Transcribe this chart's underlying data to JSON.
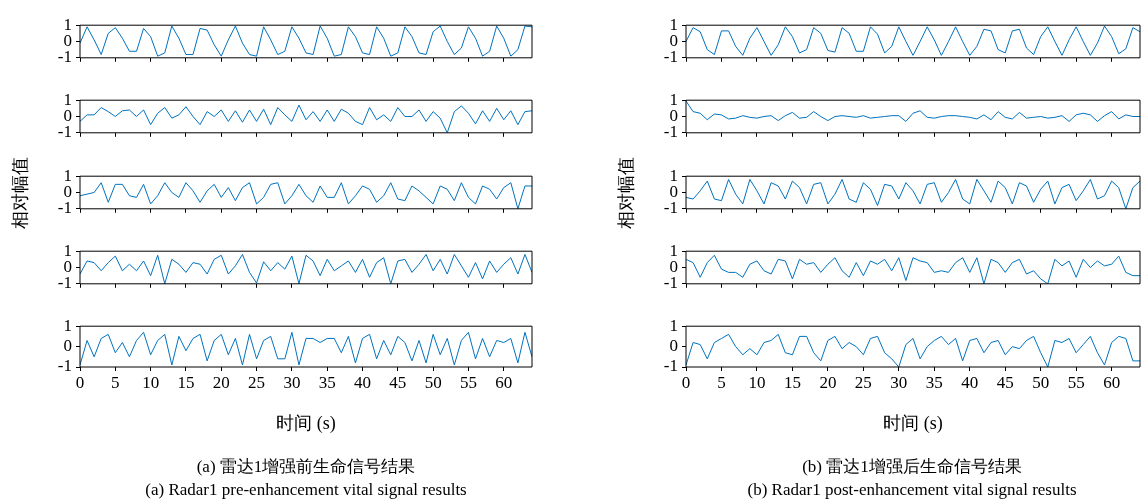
{
  "chart_data": [
    {
      "type": "line",
      "color": "#0072bd",
      "xlim": [
        0,
        64
      ],
      "xticks": [
        0,
        5,
        10,
        15,
        20,
        25,
        30,
        35,
        40,
        45,
        50,
        55,
        60
      ],
      "ylim": [
        -1,
        1
      ],
      "yticks": [
        -1,
        0,
        1
      ],
      "tick_labels": "y",
      "x": [
        0,
        1,
        2,
        3,
        4,
        5,
        6,
        7,
        8,
        9,
        10,
        11,
        12,
        13,
        14,
        15,
        16,
        17,
        18,
        19,
        20,
        21,
        22,
        23,
        24,
        25,
        26,
        27,
        28,
        29,
        30,
        31,
        32,
        33,
        34,
        35,
        36,
        37,
        38,
        39,
        40,
        41,
        42,
        43,
        44,
        45,
        46,
        47,
        48,
        49,
        50,
        51,
        52,
        53,
        54,
        55,
        56,
        57,
        58,
        59,
        60,
        61,
        62,
        63,
        64
      ],
      "values": [
        -0.1,
        0.9,
        0.1,
        -0.8,
        0.5,
        0.85,
        0.2,
        -0.6,
        -0.6,
        0.8,
        0.3,
        -0.9,
        -0.7,
        0.95,
        0.2,
        -0.8,
        -0.8,
        0.8,
        0.7,
        -0.2,
        -0.9,
        0.1,
        0.95,
        -0.1,
        -0.8,
        -0.9,
        0.9,
        0.1,
        -0.8,
        -0.6,
        0.9,
        0.2,
        -0.7,
        -0.8,
        0.95,
        0.2,
        -0.9,
        -0.8,
        0.9,
        0.3,
        -0.7,
        -0.8,
        0.9,
        0.2,
        -0.9,
        -0.7,
        0.9,
        0.3,
        -0.7,
        -0.8,
        0.6,
        0.95,
        0.0,
        -0.8,
        -0.4,
        0.9,
        0.2,
        -0.9,
        -0.6,
        0.95,
        0.2,
        -0.9,
        -0.5,
        0.95,
        0.9
      ]
    },
    {
      "type": "line",
      "color": "#0072bd",
      "xlim": [
        0,
        64
      ],
      "xticks": [
        0,
        5,
        10,
        15,
        20,
        25,
        30,
        35,
        40,
        45,
        50,
        55,
        60
      ],
      "ylim": [
        -1,
        1
      ],
      "yticks": [
        -1,
        0,
        1
      ],
      "tick_labels": "y",
      "x": [
        0,
        1,
        2,
        3,
        4,
        5,
        6,
        7,
        8,
        9,
        10,
        11,
        12,
        13,
        14,
        15,
        16,
        17,
        18,
        19,
        20,
        21,
        22,
        23,
        24,
        25,
        26,
        27,
        28,
        29,
        30,
        31,
        32,
        33,
        34,
        35,
        36,
        37,
        38,
        39,
        40,
        41,
        42,
        43,
        44,
        45,
        46,
        47,
        48,
        49,
        50,
        51,
        52,
        53,
        54,
        55,
        56,
        57,
        58,
        59,
        60,
        61,
        62,
        63,
        64
      ],
      "values": [
        -0.3,
        0.1,
        0.1,
        0.55,
        0.3,
        0.0,
        0.35,
        0.4,
        0.0,
        0.4,
        -0.5,
        0.2,
        0.55,
        -0.1,
        0.1,
        0.6,
        0.0,
        -0.5,
        0.3,
        0.0,
        0.4,
        -0.3,
        0.35,
        -0.35,
        0.4,
        -0.3,
        0.45,
        -0.5,
        0.55,
        0.1,
        -0.3,
        0.7,
        -0.2,
        0.3,
        -0.3,
        0.4,
        -0.3,
        0.45,
        0.2,
        -0.3,
        -0.5,
        0.55,
        -0.2,
        0.1,
        -0.3,
        0.55,
        0.0,
        0.0,
        0.4,
        -0.3,
        0.3,
        -0.1,
        -1.0,
        0.3,
        0.65,
        0.2,
        -0.45,
        0.35,
        -0.3,
        0.5,
        -0.2,
        0.35,
        -0.5,
        0.3,
        0.35
      ]
    },
    {
      "type": "line",
      "color": "#0072bd",
      "xlim": [
        0,
        64
      ],
      "xticks": [
        0,
        5,
        10,
        15,
        20,
        25,
        30,
        35,
        40,
        45,
        50,
        55,
        60
      ],
      "ylim": [
        -1,
        1
      ],
      "yticks": [
        -1,
        0,
        1
      ],
      "tick_labels": "y",
      "ylabel": "相对幅值",
      "x": [
        0,
        1,
        2,
        3,
        4,
        5,
        6,
        7,
        8,
        9,
        10,
        11,
        12,
        13,
        14,
        15,
        16,
        17,
        18,
        19,
        20,
        21,
        22,
        23,
        24,
        25,
        26,
        27,
        28,
        29,
        30,
        31,
        32,
        33,
        34,
        35,
        36,
        37,
        38,
        39,
        40,
        41,
        42,
        43,
        44,
        45,
        46,
        47,
        48,
        49,
        50,
        51,
        52,
        53,
        54,
        55,
        56,
        57,
        58,
        59,
        60,
        61,
        62,
        63,
        64
      ],
      "values": [
        -0.2,
        -0.1,
        0.0,
        0.6,
        -0.6,
        0.5,
        0.5,
        -0.2,
        -0.3,
        0.5,
        -0.7,
        -0.2,
        0.6,
        0.0,
        -0.3,
        0.6,
        0.1,
        -0.6,
        0.1,
        0.5,
        -0.3,
        0.3,
        -0.5,
        0.3,
        0.6,
        -0.7,
        -0.3,
        0.5,
        0.6,
        -0.7,
        -0.2,
        0.5,
        -0.2,
        -0.6,
        0.4,
        -0.3,
        -0.3,
        0.6,
        -0.7,
        -0.2,
        0.4,
        0.2,
        -0.6,
        -0.2,
        0.6,
        -0.4,
        -0.5,
        0.4,
        0.1,
        -0.3,
        -0.7,
        0.4,
        0.2,
        -0.5,
        0.6,
        -0.3,
        -0.7,
        0.4,
        0.2,
        -0.4,
        0.3,
        0.6,
        -1.0,
        0.4,
        0.4
      ]
    },
    {
      "type": "line",
      "color": "#0072bd",
      "xlim": [
        0,
        64
      ],
      "xticks": [
        0,
        5,
        10,
        15,
        20,
        25,
        30,
        35,
        40,
        45,
        50,
        55,
        60
      ],
      "ylim": [
        -1,
        1
      ],
      "yticks": [
        -1,
        0,
        1
      ],
      "tick_labels": "y",
      "x": [
        0,
        1,
        2,
        3,
        4,
        5,
        6,
        7,
        8,
        9,
        10,
        11,
        12,
        13,
        14,
        15,
        16,
        17,
        18,
        19,
        20,
        21,
        22,
        23,
        24,
        25,
        26,
        27,
        28,
        29,
        30,
        31,
        32,
        33,
        34,
        35,
        36,
        37,
        38,
        39,
        40,
        41,
        42,
        43,
        44,
        45,
        46,
        47,
        48,
        49,
        50,
        51,
        52,
        53,
        54,
        55,
        56,
        57,
        58,
        59,
        60,
        61,
        62,
        63,
        64
      ],
      "values": [
        -0.4,
        0.4,
        0.3,
        -0.2,
        0.3,
        0.7,
        -0.2,
        0.2,
        -0.2,
        0.4,
        -0.5,
        0.75,
        -1.0,
        0.5,
        0.2,
        -0.3,
        0.3,
        0.2,
        -0.4,
        0.5,
        0.75,
        -0.4,
        0.1,
        0.8,
        -0.3,
        -0.95,
        0.35,
        -0.2,
        0.3,
        -0.1,
        0.7,
        -1.0,
        0.75,
        0.4,
        -0.5,
        0.5,
        -0.2,
        0.1,
        0.4,
        -0.3,
        0.5,
        -0.6,
        0.3,
        0.6,
        -1.0,
        0.4,
        0.5,
        -0.3,
        0.2,
        0.8,
        -0.2,
        0.5,
        -0.4,
        0.8,
        0.1,
        -0.6,
        0.3,
        -0.7,
        0.4,
        -0.3,
        0.2,
        0.6,
        -0.4,
        0.8,
        -0.3
      ]
    },
    {
      "type": "line",
      "color": "#0072bd",
      "xlim": [
        0,
        64
      ],
      "xticks": [
        0,
        5,
        10,
        15,
        20,
        25,
        30,
        35,
        40,
        45,
        50,
        55,
        60
      ],
      "ylim": [
        -1,
        1
      ],
      "yticks": [
        -1,
        0,
        1
      ],
      "xlabel": "时间 (s)",
      "annotations": [
        "(a) 雷达1增强前生命信号结果",
        "(a) Radar1 pre-enhancement vital signal results"
      ],
      "x": [
        0,
        1,
        2,
        3,
        4,
        5,
        6,
        7,
        8,
        9,
        10,
        11,
        12,
        13,
        14,
        15,
        16,
        17,
        18,
        19,
        20,
        21,
        22,
        23,
        24,
        25,
        26,
        27,
        28,
        29,
        30,
        31,
        32,
        33,
        34,
        35,
        36,
        37,
        38,
        39,
        40,
        41,
        42,
        43,
        44,
        45,
        46,
        47,
        48,
        49,
        50,
        51,
        52,
        53,
        54,
        55,
        56,
        57,
        58,
        59,
        60,
        61,
        62,
        63,
        64
      ],
      "values": [
        -0.9,
        0.3,
        -0.5,
        0.4,
        0.6,
        -0.3,
        0.2,
        -0.5,
        0.3,
        0.7,
        -0.4,
        0.3,
        0.6,
        -0.9,
        0.5,
        -0.2,
        0.4,
        0.6,
        -0.7,
        0.3,
        0.6,
        -0.4,
        0.4,
        -0.9,
        0.6,
        -0.6,
        0.3,
        0.5,
        -0.6,
        -0.6,
        0.7,
        -0.9,
        0.4,
        0.4,
        0.2,
        0.4,
        0.4,
        -0.3,
        0.5,
        -0.8,
        0.4,
        0.6,
        -0.6,
        0.3,
        -0.4,
        0.5,
        0.2,
        -0.7,
        0.3,
        -0.8,
        0.6,
        -0.4,
        0.4,
        -0.9,
        0.3,
        0.7,
        -0.6,
        0.4,
        -0.5,
        0.3,
        0.2,
        0.4,
        -0.8,
        0.7,
        -0.5
      ]
    },
    {
      "type": "line",
      "color": "#0072bd",
      "xlim": [
        0,
        64
      ],
      "xticks": [
        0,
        5,
        10,
        15,
        20,
        25,
        30,
        35,
        40,
        45,
        50,
        55,
        60
      ],
      "ylim": [
        -1,
        1
      ],
      "yticks": [
        -1,
        0,
        1
      ],
      "tick_labels": "y",
      "x": [
        0,
        1,
        2,
        3,
        4,
        5,
        6,
        7,
        8,
        9,
        10,
        11,
        12,
        13,
        14,
        15,
        16,
        17,
        18,
        19,
        20,
        21,
        22,
        23,
        24,
        25,
        26,
        27,
        28,
        29,
        30,
        31,
        32,
        33,
        34,
        35,
        36,
        37,
        38,
        39,
        40,
        41,
        42,
        43,
        44,
        45,
        46,
        47,
        48,
        49,
        50,
        51,
        52,
        53,
        54,
        55,
        56,
        57,
        58,
        59,
        60,
        61,
        62,
        63,
        64
      ],
      "values": [
        0.0,
        0.85,
        0.6,
        -0.5,
        -0.8,
        0.65,
        0.65,
        -0.3,
        -0.85,
        0.2,
        0.85,
        0.0,
        -0.85,
        -0.2,
        0.9,
        0.3,
        -0.7,
        -0.5,
        0.85,
        0.5,
        -0.55,
        -0.65,
        0.85,
        0.5,
        -0.6,
        -0.6,
        0.9,
        0.45,
        -0.7,
        -0.3,
        0.9,
        0.0,
        -0.85,
        0.0,
        0.9,
        0.1,
        -0.85,
        0.0,
        0.9,
        0.0,
        -0.85,
        -0.3,
        0.75,
        0.65,
        -0.5,
        -0.7,
        0.65,
        0.75,
        -0.4,
        -0.8,
        0.3,
        0.9,
        0.0,
        -0.85,
        0.1,
        0.9,
        0.0,
        -0.85,
        -0.1,
        0.95,
        0.3,
        -0.75,
        -0.45,
        0.85,
        0.6
      ]
    },
    {
      "type": "line",
      "color": "#0072bd",
      "xlim": [
        0,
        64
      ],
      "xticks": [
        0,
        5,
        10,
        15,
        20,
        25,
        30,
        35,
        40,
        45,
        50,
        55,
        60
      ],
      "ylim": [
        -1,
        1
      ],
      "yticks": [
        -1,
        0,
        1
      ],
      "tick_labels": "y",
      "x": [
        0,
        1,
        2,
        3,
        4,
        5,
        6,
        7,
        8,
        9,
        10,
        11,
        12,
        13,
        14,
        15,
        16,
        17,
        18,
        19,
        20,
        21,
        22,
        23,
        24,
        25,
        26,
        27,
        28,
        29,
        30,
        31,
        32,
        33,
        34,
        35,
        36,
        37,
        38,
        39,
        40,
        41,
        42,
        43,
        44,
        45,
        46,
        47,
        48,
        49,
        50,
        51,
        52,
        53,
        54,
        55,
        56,
        57,
        58,
        59,
        60,
        61,
        62,
        63,
        64
      ],
      "values": [
        0.95,
        0.3,
        0.2,
        -0.2,
        0.15,
        0.1,
        -0.15,
        -0.1,
        0.05,
        -0.05,
        -0.1,
        0.0,
        0.05,
        -0.25,
        0.05,
        0.25,
        -0.1,
        -0.05,
        0.3,
        0.0,
        -0.25,
        0.0,
        0.05,
        0.0,
        -0.05,
        0.05,
        -0.1,
        -0.05,
        0.0,
        0.05,
        0.05,
        -0.3,
        0.2,
        0.35,
        -0.05,
        -0.1,
        0.0,
        0.05,
        0.05,
        0.0,
        -0.05,
        -0.15,
        0.1,
        -0.2,
        0.3,
        -0.05,
        -0.15,
        0.25,
        -0.1,
        -0.05,
        0.0,
        -0.1,
        -0.05,
        0.05,
        -0.3,
        0.1,
        0.2,
        0.1,
        -0.3,
        0.05,
        0.3,
        -0.15,
        0.1,
        0.0,
        0.0
      ]
    },
    {
      "type": "line",
      "color": "#0072bd",
      "xlim": [
        0,
        64
      ],
      "xticks": [
        0,
        5,
        10,
        15,
        20,
        25,
        30,
        35,
        40,
        45,
        50,
        55,
        60
      ],
      "ylim": [
        -1,
        1
      ],
      "yticks": [
        -1,
        0,
        1
      ],
      "tick_labels": "y",
      "ylabel": "相对幅值",
      "x": [
        0,
        1,
        2,
        3,
        4,
        5,
        6,
        7,
        8,
        9,
        10,
        11,
        12,
        13,
        14,
        15,
        16,
        17,
        18,
        19,
        20,
        21,
        22,
        23,
        24,
        25,
        26,
        27,
        28,
        29,
        30,
        31,
        32,
        33,
        34,
        35,
        36,
        37,
        38,
        39,
        40,
        41,
        42,
        43,
        44,
        45,
        46,
        47,
        48,
        49,
        50,
        51,
        52,
        53,
        54,
        55,
        56,
        57,
        58,
        59,
        60,
        61,
        62,
        63,
        64
      ],
      "values": [
        -0.3,
        -0.4,
        0.1,
        0.7,
        -0.4,
        -0.5,
        0.8,
        -0.1,
        -0.7,
        0.8,
        0.1,
        -0.7,
        0.6,
        0.4,
        -0.4,
        0.7,
        0.3,
        -0.7,
        0.5,
        0.6,
        -0.7,
        -0.1,
        0.8,
        -0.4,
        -0.6,
        0.6,
        0.2,
        -0.8,
        0.5,
        0.4,
        -0.4,
        0.6,
        0.1,
        -0.7,
        0.5,
        0.6,
        -0.6,
        0.0,
        0.8,
        -0.4,
        -0.7,
        0.8,
        0.1,
        -0.6,
        0.7,
        0.3,
        -0.7,
        0.6,
        0.4,
        -0.6,
        0.2,
        0.7,
        -0.7,
        0.3,
        0.5,
        -0.5,
        0.1,
        0.8,
        -0.4,
        -0.2,
        0.7,
        0.3,
        -1.0,
        0.3,
        0.7
      ]
    },
    {
      "type": "line",
      "color": "#0072bd",
      "xlim": [
        0,
        64
      ],
      "xticks": [
        0,
        5,
        10,
        15,
        20,
        25,
        30,
        35,
        40,
        45,
        50,
        55,
        60
      ],
      "ylim": [
        -1,
        1
      ],
      "yticks": [
        -1,
        0,
        1
      ],
      "tick_labels": "y",
      "x": [
        0,
        1,
        2,
        3,
        4,
        5,
        6,
        7,
        8,
        9,
        10,
        11,
        12,
        13,
        14,
        15,
        16,
        17,
        18,
        19,
        20,
        21,
        22,
        23,
        24,
        25,
        26,
        27,
        28,
        29,
        30,
        31,
        32,
        33,
        34,
        35,
        36,
        37,
        38,
        39,
        40,
        41,
        42,
        43,
        44,
        45,
        46,
        47,
        48,
        49,
        50,
        51,
        52,
        53,
        54,
        55,
        56,
        57,
        58,
        59,
        60,
        61,
        62,
        63,
        64
      ],
      "values": [
        0.5,
        0.3,
        -0.6,
        0.3,
        0.75,
        -0.1,
        -0.3,
        -0.3,
        -0.6,
        0.2,
        0.4,
        -0.2,
        -0.4,
        0.5,
        0.4,
        -0.7,
        0.5,
        0.2,
        0.3,
        -0.3,
        0.2,
        0.6,
        -0.2,
        -0.6,
        0.3,
        -0.5,
        0.4,
        0.2,
        0.5,
        -0.2,
        0.6,
        -0.8,
        0.6,
        0.4,
        0.3,
        -0.3,
        -0.2,
        -0.3,
        0.3,
        0.6,
        -0.3,
        0.6,
        -1.0,
        0.5,
        0.3,
        -0.3,
        0.3,
        0.5,
        -0.4,
        -0.2,
        -0.7,
        -1.0,
        0.5,
        0.1,
        0.4,
        -0.6,
        0.5,
        0.0,
        0.4,
        0.1,
        0.2,
        0.7,
        -0.3,
        -0.5,
        -0.5
      ]
    },
    {
      "type": "line",
      "color": "#0072bd",
      "xlim": [
        0,
        64
      ],
      "xticks": [
        0,
        5,
        10,
        15,
        20,
        25,
        30,
        35,
        40,
        45,
        50,
        55,
        60
      ],
      "ylim": [
        -1,
        1
      ],
      "yticks": [
        -1,
        0,
        1
      ],
      "xlabel": "时间 (s)",
      "annotations": [
        "(b) 雷达1增强后生命信号结果",
        "(b) Radar1 post-enhancement vital signal results"
      ],
      "x": [
        0,
        1,
        2,
        3,
        4,
        5,
        6,
        7,
        8,
        9,
        10,
        11,
        12,
        13,
        14,
        15,
        16,
        17,
        18,
        19,
        20,
        21,
        22,
        23,
        24,
        25,
        26,
        27,
        28,
        29,
        30,
        31,
        32,
        33,
        34,
        35,
        36,
        37,
        38,
        39,
        40,
        41,
        42,
        43,
        44,
        45,
        46,
        47,
        48,
        49,
        50,
        51,
        52,
        53,
        54,
        55,
        56,
        57,
        58,
        59,
        60,
        61,
        62,
        63,
        64
      ],
      "values": [
        -0.9,
        0.2,
        0.1,
        -0.6,
        0.2,
        0.4,
        0.6,
        0.0,
        -0.4,
        -0.1,
        -0.4,
        0.2,
        0.3,
        0.6,
        -0.3,
        -0.4,
        0.5,
        0.5,
        -0.3,
        -0.7,
        0.3,
        0.5,
        -0.1,
        0.2,
        0.0,
        -0.4,
        0.4,
        0.5,
        -0.3,
        -0.6,
        -1.0,
        0.1,
        0.4,
        -0.6,
        0.0,
        0.3,
        0.5,
        0.1,
        0.4,
        -0.7,
        0.3,
        0.4,
        -0.3,
        0.2,
        0.3,
        -0.4,
        0.0,
        -0.1,
        0.3,
        0.5,
        -0.3,
        -1.0,
        0.3,
        0.2,
        0.4,
        -0.3,
        0.1,
        0.5,
        -0.3,
        -0.9,
        0.2,
        0.5,
        0.4,
        -0.7,
        -0.7
      ]
    }
  ]
}
